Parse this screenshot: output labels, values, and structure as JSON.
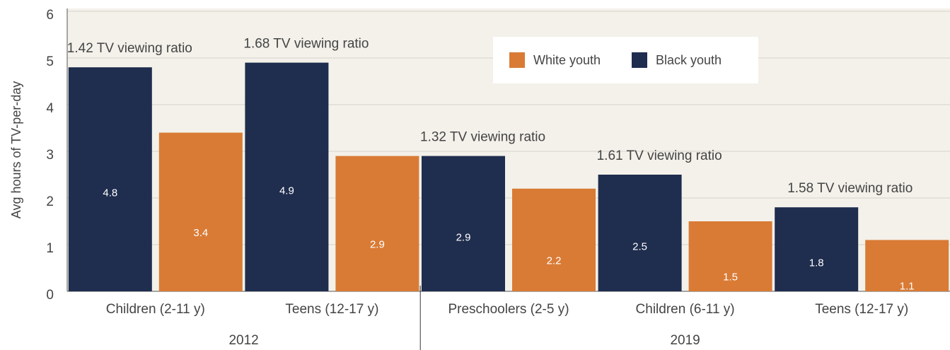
{
  "chart_data": {
    "type": "bar",
    "y_label": "Avg hours of TV-per-day",
    "categories": [
      "Children (2-11 y)",
      "Teens (12-17 y)",
      "Preschoolers (2-5 y)",
      "Children (6-11 y)",
      "Teens (12-17 y)"
    ],
    "groups": [
      {
        "name": "2012",
        "count": 2
      },
      {
        "name": "2019",
        "count": 3
      }
    ],
    "annotations": [
      "1.42 TV viewing ratio",
      "1.68 TV viewing ratio",
      "1.32 TV viewing ratio",
      "1.61 TV viewing ratio",
      "1.58 TV viewing ratio"
    ],
    "series": [
      {
        "name": "White youth",
        "color": "#d97b35",
        "values": [
          3.4,
          2.9,
          2.2,
          1.5,
          1.1
        ]
      },
      {
        "name": "Black youth",
        "color": "#1f2d4e",
        "values": [
          4.8,
          4.9,
          2.9,
          2.5,
          1.8
        ]
      }
    ],
    "ylim": [
      0,
      6
    ],
    "yticks": [
      0,
      1,
      2,
      3,
      4,
      5,
      6
    ],
    "grid": true
  }
}
